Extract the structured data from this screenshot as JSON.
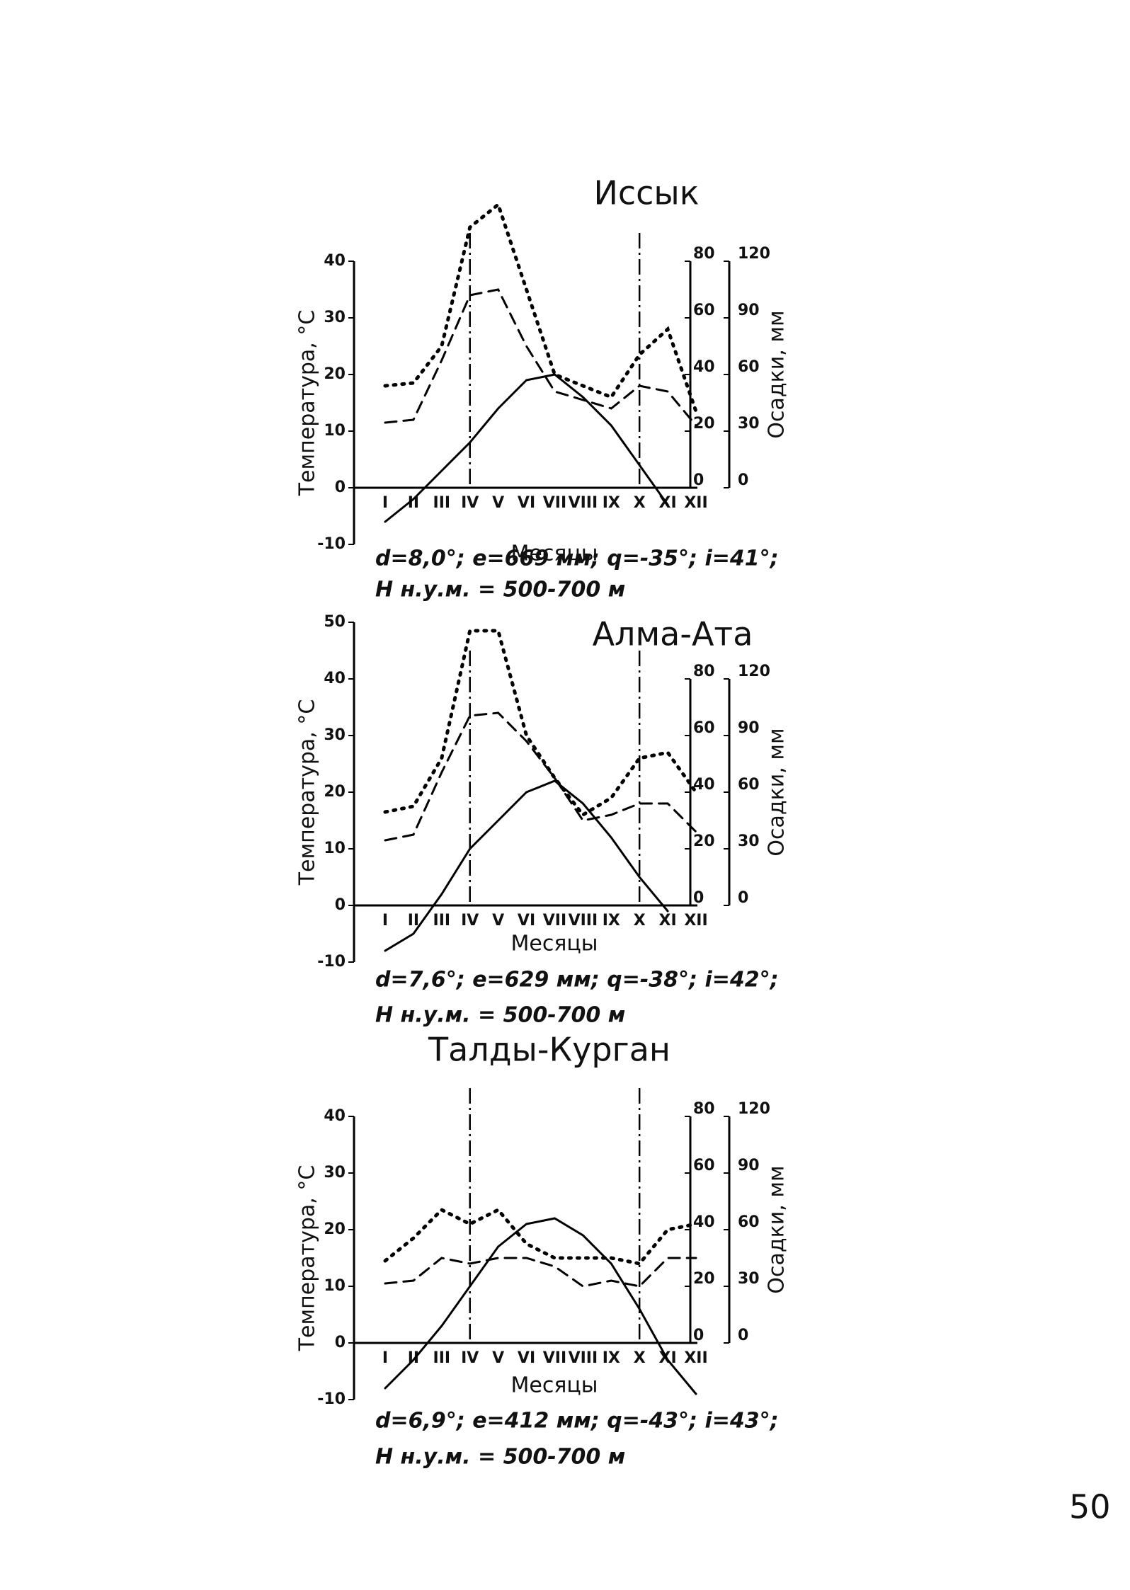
{
  "chart_data": [
    {
      "type": "line",
      "title": "Иссык",
      "ylabel": "Температура, °С",
      "y2label": "Осадки, мм",
      "xlabel": "Месяцы",
      "categories": [
        "I",
        "II",
        "III",
        "IV",
        "V",
        "VI",
        "VII",
        "VIII",
        "IX",
        "X",
        "XI",
        "XII"
      ],
      "ylim": [
        -10,
        40
      ],
      "yticks": [
        -10,
        0,
        10,
        20,
        30,
        40
      ],
      "y2lim": [
        0,
        80
      ],
      "y2ticks": [
        0,
        20,
        40,
        60,
        80
      ],
      "y3lim": [
        0,
        120
      ],
      "y3ticks": [
        0,
        30,
        60,
        90,
        120
      ],
      "series": [
        {
          "color": "#000",
          "style": "solid",
          "values": [
            -6,
            -2,
            3,
            8,
            14,
            19,
            20,
            16,
            11,
            4,
            -3,
            null
          ]
        },
        {
          "color": "#000",
          "style": "dotted",
          "axis": "y2",
          "values": [
            36,
            37,
            50,
            92,
            100,
            70,
            40,
            36,
            32,
            47,
            56,
            27
          ]
        },
        {
          "color": "#000",
          "style": "dashed",
          "axis": "y2",
          "values": [
            23,
            24,
            45,
            68,
            70,
            50,
            34,
            31,
            28,
            36,
            34,
            22
          ]
        }
      ],
      "annotations": [
        "d=8,0°; e=669 мм; q=-35°; i=41°;",
        "Н н.у.м. = 500-700 м"
      ]
    },
    {
      "type": "line",
      "title": "Алма-Ата",
      "ylabel": "Температура, °С",
      "y2label": "Осадки, мм",
      "xlabel": "Месяцы",
      "categories": [
        "I",
        "II",
        "III",
        "IV",
        "V",
        "VI",
        "VII",
        "VIII",
        "IX",
        "X",
        "XI",
        "XII"
      ],
      "ylim": [
        -10,
        50
      ],
      "yticks": [
        -10,
        0,
        10,
        20,
        30,
        40,
        50
      ],
      "y2lim": [
        0,
        80
      ],
      "y2ticks": [
        0,
        20,
        40,
        60,
        80
      ],
      "y3lim": [
        0,
        120
      ],
      "y3ticks": [
        0,
        30,
        60,
        90,
        120
      ],
      "series": [
        {
          "color": "#000",
          "style": "solid",
          "values": [
            -8,
            -5,
            2,
            10,
            15,
            20,
            22,
            18,
            12,
            5,
            -1,
            null
          ]
        },
        {
          "color": "#000",
          "style": "dotted",
          "axis": "y2",
          "values": [
            33,
            35,
            52,
            97,
            97,
            60,
            45,
            32,
            38,
            52,
            54,
            40
          ]
        },
        {
          "color": "#000",
          "style": "dashed",
          "axis": "y2",
          "values": [
            23,
            25,
            47,
            67,
            68,
            58,
            45,
            30,
            32,
            36,
            36,
            26
          ]
        }
      ],
      "annotations": [
        "d=7,6°; e=629 мм; q=-38°; i=42°;",
        "Н н.у.м. = 500-700 м"
      ]
    },
    {
      "type": "line",
      "title": "Талды-Курган",
      "ylabel": "Температура, °С",
      "y2label": "Осадки, мм",
      "xlabel": "Месяцы",
      "categories": [
        "I",
        "II",
        "III",
        "IV",
        "V",
        "VI",
        "VII",
        "VIII",
        "IX",
        "X",
        "XI",
        "XII"
      ],
      "ylim": [
        -10,
        40
      ],
      "yticks": [
        -10,
        0,
        10,
        20,
        30,
        40
      ],
      "y2lim": [
        0,
        80
      ],
      "y2ticks": [
        0,
        20,
        40,
        60,
        80
      ],
      "y3lim": [
        0,
        120
      ],
      "y3ticks": [
        0,
        30,
        60,
        90,
        120
      ],
      "series": [
        {
          "color": "#000",
          "style": "solid",
          "values": [
            -8,
            -3,
            3,
            10,
            17,
            21,
            22,
            19,
            14,
            6,
            -3,
            -9
          ]
        },
        {
          "color": "#000",
          "style": "dotted",
          "axis": "y2",
          "values": [
            29,
            37,
            47,
            42,
            47,
            35,
            30,
            30,
            30,
            28,
            40,
            42
          ]
        },
        {
          "color": "#000",
          "style": "dashed",
          "axis": "y2",
          "values": [
            21,
            22,
            30,
            28,
            30,
            30,
            27,
            20,
            22,
            20,
            30,
            30
          ]
        }
      ],
      "annotations": [
        "d=6,9°; e=412 мм; q=-43°; i=43°;",
        "Н н.у.м. = 500-700 м"
      ]
    }
  ],
  "page_number": "50"
}
